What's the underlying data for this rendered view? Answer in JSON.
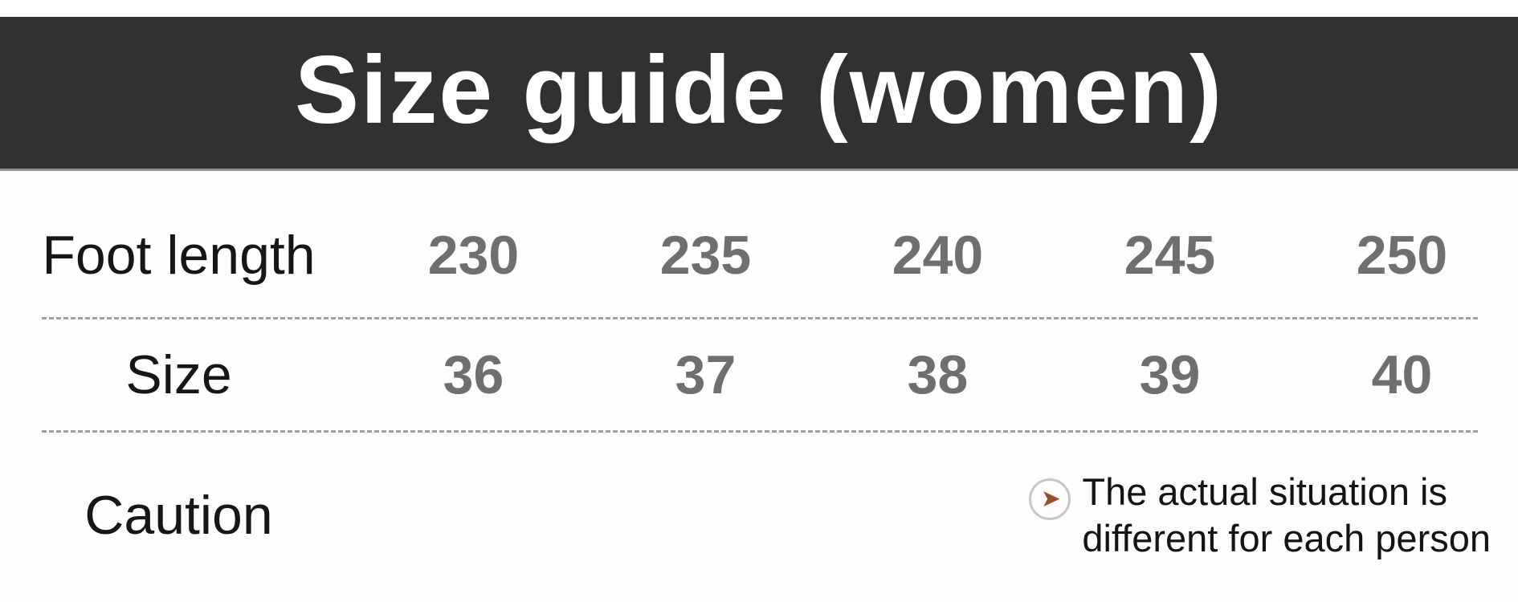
{
  "banner": {
    "title": "Size guide (women)",
    "bg_color": "#323132",
    "text_color": "#ffffff"
  },
  "table": {
    "rows": [
      {
        "label": "Foot length",
        "values": [
          "230",
          "235",
          "240",
          "245",
          "250"
        ]
      },
      {
        "label": "Size",
        "values": [
          "36",
          "37",
          "38",
          "39",
          "40"
        ]
      }
    ]
  },
  "caution": {
    "label": "Caution",
    "icon": "arrow-right-circle",
    "icon_glyph": "➤",
    "icon_color": "#96502d",
    "note_line1": "The actual situation is",
    "note_line2": "different for each person"
  },
  "colors": {
    "value_text": "#6f6f6f",
    "label_text": "#161616",
    "separator": "#a0a0a0"
  }
}
